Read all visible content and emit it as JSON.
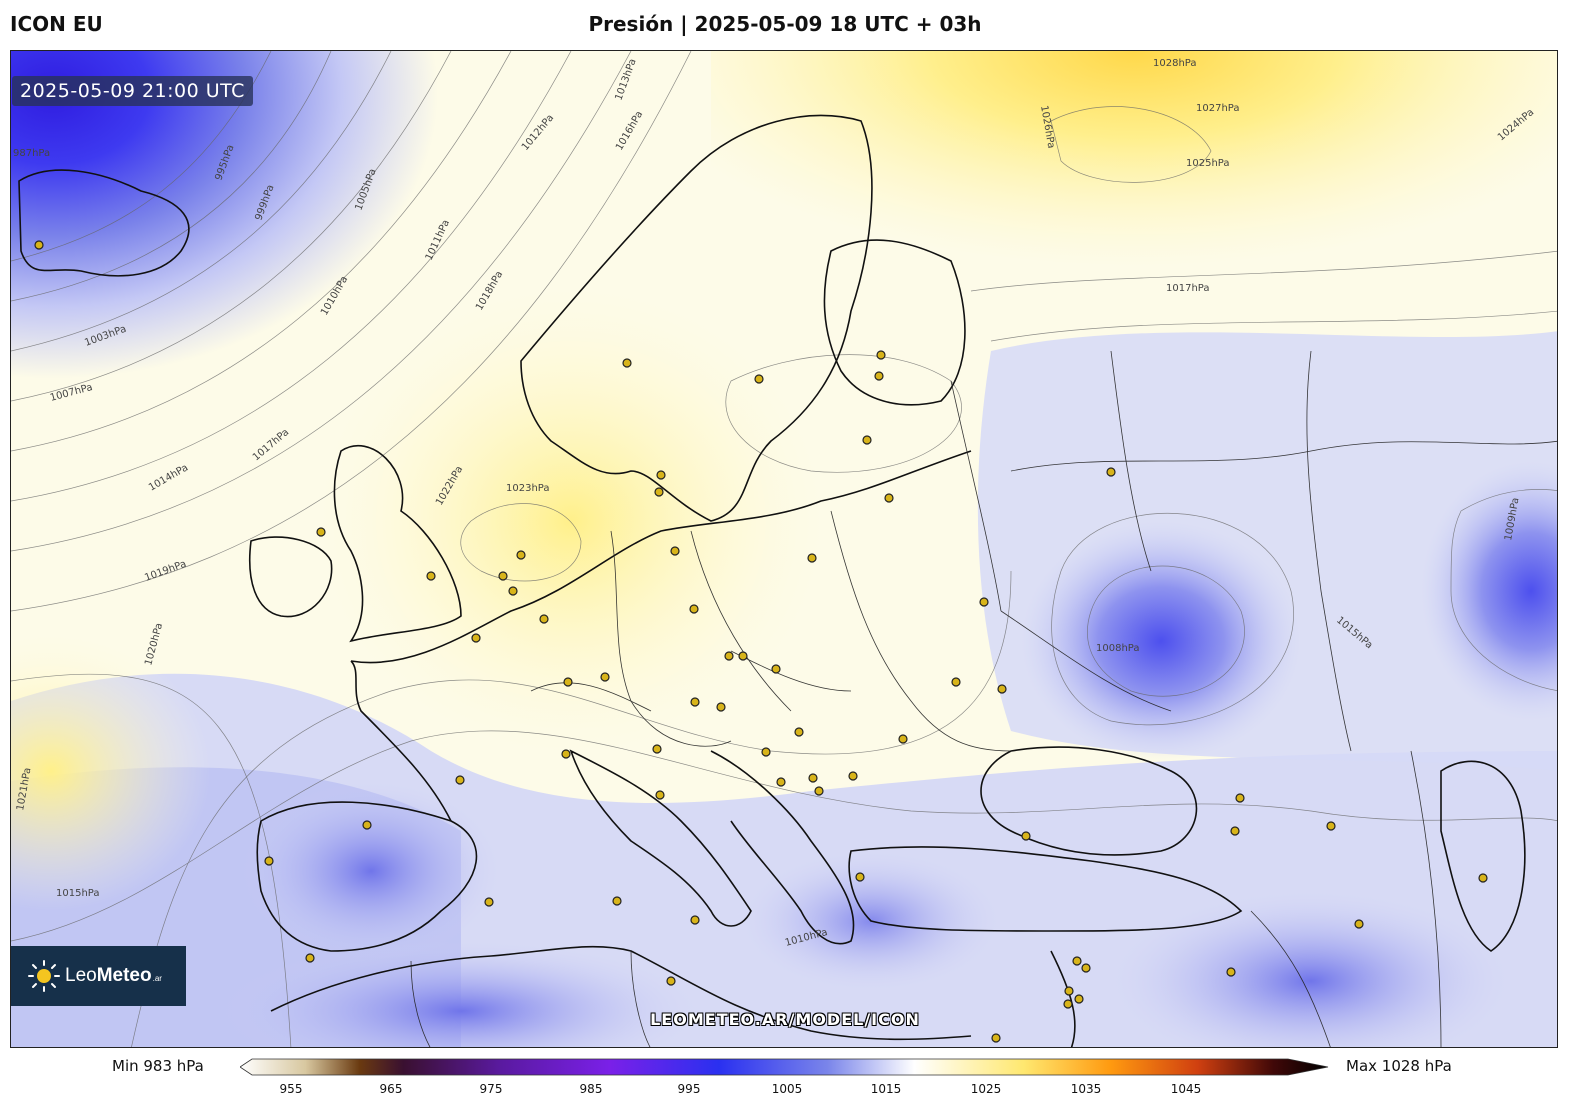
{
  "header": {
    "model": "ICON EU",
    "title": "Presión | 2025-05-09 18 UTC + 03h"
  },
  "map": {
    "valid_time": "2025-05-09 21:00 UTC",
    "watermark": "LEOMETEO.AR/MODEL/ICON",
    "variable": "pressure",
    "isobar_labels": [
      {
        "text": "987hPa"
      },
      {
        "text": "995hPa"
      },
      {
        "text": "999hPa"
      },
      {
        "text": "1005hPa"
      },
      {
        "text": "1010hPa"
      },
      {
        "text": "1013hPa"
      },
      {
        "text": "1016hPa"
      },
      {
        "text": "1012hPa"
      },
      {
        "text": "1011hPa"
      },
      {
        "text": "1003hPa"
      },
      {
        "text": "1007hPa"
      },
      {
        "text": "1014hPa"
      },
      {
        "text": "1015hPa"
      },
      {
        "text": "1017hPa"
      },
      {
        "text": "1018hPa"
      },
      {
        "text": "1019hPa"
      },
      {
        "text": "1020hPa"
      },
      {
        "text": "1021hPa"
      },
      {
        "text": "1022hPa"
      },
      {
        "text": "1023hPa"
      },
      {
        "text": "1025hPa"
      },
      {
        "text": "1026hPa"
      },
      {
        "text": "1027hPa"
      },
      {
        "text": "1028hPa"
      },
      {
        "text": "1024hPa"
      },
      {
        "text": "1008hPa"
      },
      {
        "text": "1009hPa"
      },
      {
        "text": "1015hPa"
      },
      {
        "text": "1010hPa"
      },
      {
        "text": "1017hPa"
      }
    ],
    "colors": {
      "low": "#3a2cf0",
      "mid_low": "#c8ccf6",
      "neutral": "#ffffff",
      "high": "#fff6b0",
      "max": "#ffd84a"
    }
  },
  "logo": {
    "brand_light": "Leo",
    "brand_bold": "Meteo",
    "suffix": ".ar"
  },
  "colorbar": {
    "min_label": "Min 983 hPa",
    "max_label": "Max 1028 hPa",
    "ticks": [
      "955",
      "965",
      "975",
      "985",
      "995",
      "1005",
      "1015",
      "1025",
      "1035",
      "1045"
    ]
  }
}
